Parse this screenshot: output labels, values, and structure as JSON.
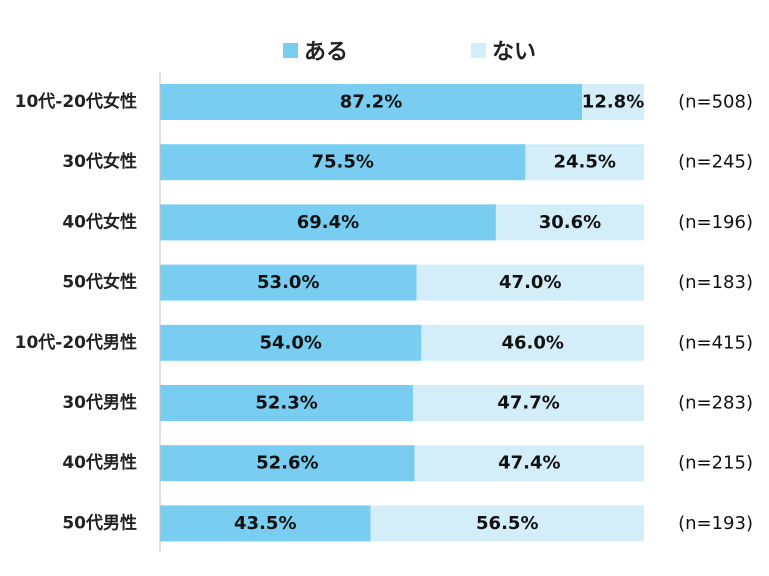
{
  "chart_data": {
    "type": "bar",
    "orientation": "horizontal",
    "stacked": true,
    "percent_stacked": true,
    "categories": [
      "10代-20代女性",
      "30代女性",
      "40代女性",
      "50代女性",
      "10代-20代男性",
      "30代男性",
      "40代男性",
      "50代男性"
    ],
    "series": [
      {
        "name": "ある",
        "color": "#78cdf0",
        "values": [
          87.2,
          75.5,
          69.4,
          53.0,
          54.0,
          52.3,
          52.6,
          43.5
        ]
      },
      {
        "name": "ない",
        "color": "#d4eef9",
        "values": [
          12.8,
          24.5,
          30.6,
          47.0,
          46.0,
          47.7,
          47.4,
          56.5
        ]
      }
    ],
    "value_labels": [
      [
        "87.2%",
        "75.5%",
        "69.4%",
        "53.0%",
        "54.0%",
        "52.3%",
        "52.6%",
        "43.5%"
      ],
      [
        "12.8%",
        "24.5%",
        "30.6%",
        "47.0%",
        "46.0%",
        "47.7%",
        "47.4%",
        "56.5%"
      ]
    ],
    "sample_sizes": [
      "(n=508)",
      "(n=245)",
      "(n=196)",
      "(n=183)",
      "(n=415)",
      "(n=283)",
      "(n=215)",
      "(n=193)"
    ],
    "xlim": [
      0,
      100
    ],
    "legend_position": "top",
    "grid": false
  }
}
